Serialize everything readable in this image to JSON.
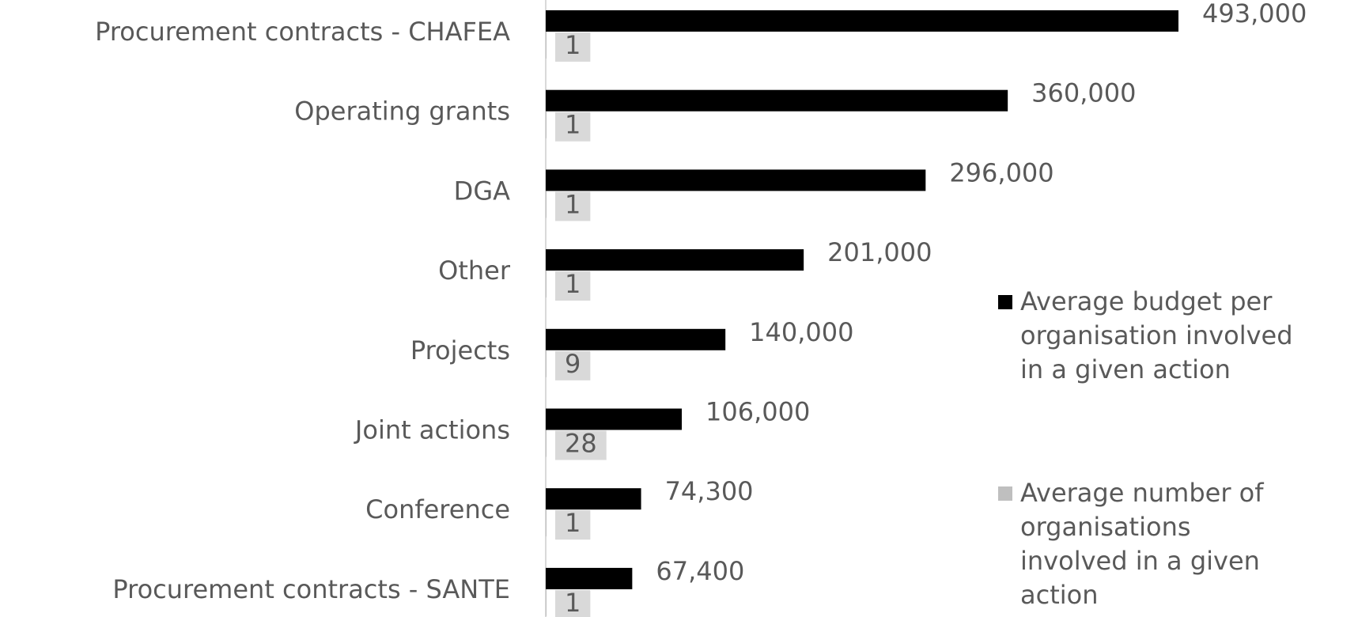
{
  "chart_data": {
    "type": "bar",
    "orientation": "horizontal",
    "categories": [
      "Procurement contracts - CHAFEA",
      "Operating grants",
      "DGA",
      "Other",
      "Projects",
      "Joint actions",
      "Conference",
      "Procurement contracts - SANTE"
    ],
    "series": [
      {
        "name": "Average budget per organisation involved in a given action",
        "color": "#000000",
        "values": [
          493000,
          360000,
          296000,
          201000,
          140000,
          106000,
          74300,
          67400
        ],
        "value_labels": [
          "493,000",
          "360,000",
          "296,000",
          "201,000",
          "140,000",
          "106,000",
          "74,300",
          "67,400"
        ]
      },
      {
        "name": "Average number of organisations involved in a given action",
        "color": "#bfbfbf",
        "values": [
          1,
          1,
          1,
          1,
          9,
          28,
          1,
          1
        ]
      }
    ],
    "legend": "right"
  }
}
